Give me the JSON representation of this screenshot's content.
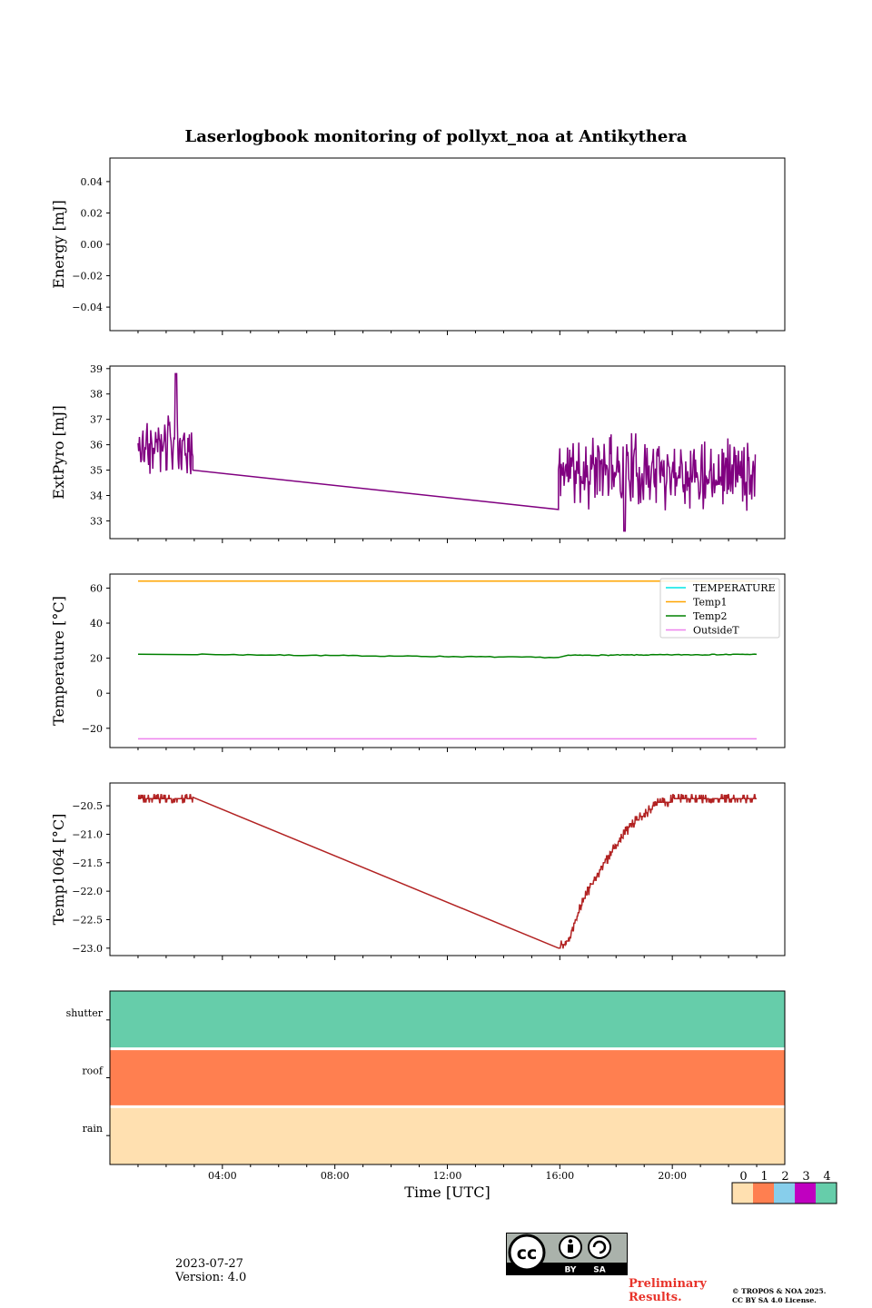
{
  "page": {
    "title": "Laserlogbook monitoring of pollyxt_noa at Antikythera",
    "date": "2023-07-27",
    "version": "Version: 4.0",
    "preliminary": "Preliminary Results.",
    "copyright_line1": "© TROPOS & NOA 2025.",
    "copyright_line2": "CC BY SA 4.0 License.",
    "cc_badge": {
      "cc": "cc",
      "by": "BY",
      "sa": "SA"
    }
  },
  "chart_data": [
    {
      "type": "line",
      "panel": "energy",
      "ylabel": "Energy [mJ]",
      "ylim": [
        -0.055,
        0.055
      ],
      "yticks": [
        0.04,
        0.02,
        0.0,
        -0.02,
        -0.04
      ],
      "ytick_labels": [
        "0.04",
        "0.02",
        "0.00",
        "−0.02",
        "−0.04"
      ],
      "series": []
    },
    {
      "type": "line",
      "panel": "extpyro",
      "ylabel": "ExtPyro [mJ]",
      "ylim": [
        32.3,
        39.1
      ],
      "yticks": [
        39,
        38,
        37,
        36,
        35,
        34,
        33
      ],
      "ytick_labels": [
        "39",
        "38",
        "37",
        "36",
        "35",
        "34",
        "33"
      ],
      "color": "#800080",
      "segments": [
        {
          "t_start": 1.0,
          "t_end": 2.95,
          "mean": 35.8,
          "amplitude": 1.4,
          "seed": 3
        },
        {
          "t_start": 15.95,
          "t_end": 22.95,
          "mean": 35.0,
          "amplitude": 1.7,
          "seed": 11
        }
      ],
      "bridge": [
        [
          2.95,
          35.0
        ],
        [
          15.95,
          33.45
        ]
      ],
      "peaks": [
        [
          2.35,
          38.8
        ],
        [
          18.3,
          32.6
        ]
      ]
    },
    {
      "type": "line",
      "panel": "temperature",
      "ylabel": "Temperature [°C]",
      "ylim": [
        -31,
        68
      ],
      "yticks": [
        60,
        40,
        20,
        0,
        -20
      ],
      "ytick_labels": [
        "60",
        "40",
        "20",
        "0",
        "−20"
      ],
      "series": [
        {
          "name": "TEMPERATURE",
          "color": "#00e5e5",
          "points": []
        },
        {
          "name": "Temp1",
          "color": "#ffa500",
          "points": [
            [
              1.0,
              64
            ],
            [
              23.0,
              64
            ]
          ]
        },
        {
          "name": "Temp2",
          "color": "#008000",
          "points": [
            [
              1.0,
              22.3
            ],
            [
              2.95,
              22.2
            ],
            [
              15.95,
              20.4
            ],
            [
              16.3,
              21.6
            ],
            [
              23.0,
              22.2
            ]
          ]
        },
        {
          "name": "OutsideT",
          "color": "#ee82ee",
          "points": [
            [
              1.0,
              -26
            ],
            [
              23.0,
              -26
            ]
          ]
        }
      ],
      "legend": "upper-right"
    },
    {
      "type": "line",
      "panel": "temp1064",
      "ylabel": "Temp1064 [°C]",
      "ylim": [
        -23.13,
        -20.1
      ],
      "yticks": [
        -20.5,
        -21.0,
        -21.5,
        -22.0,
        -22.5,
        -23.0
      ],
      "ytick_labels": [
        "−20.5",
        "−21.0",
        "−21.5",
        "−22.0",
        "−22.5",
        "−23.0"
      ],
      "color": "#b22222",
      "points": [
        [
          1.0,
          -20.35
        ],
        [
          2.95,
          -20.35
        ],
        [
          15.95,
          -23.0
        ],
        [
          16.3,
          -22.85
        ],
        [
          16.8,
          -22.2
        ],
        [
          17.5,
          -21.55
        ],
        [
          18.5,
          -20.85
        ],
        [
          19.5,
          -20.45
        ],
        [
          20.5,
          -20.35
        ],
        [
          23.0,
          -20.38
        ]
      ],
      "jitter": 0.07
    },
    {
      "type": "heatmap",
      "panel": "status",
      "rows": [
        "shutter",
        "roof",
        "rain"
      ],
      "values": [
        4,
        1,
        0
      ],
      "xlabel": "Time [UTC]",
      "xlim": [
        0,
        24
      ],
      "xticks": [
        4,
        8,
        12,
        16,
        20
      ],
      "xtick_labels": [
        "04:00",
        "08:00",
        "12:00",
        "16:00",
        "20:00"
      ],
      "colorbar": {
        "labels": [
          "0",
          "1",
          "2",
          "3",
          "4"
        ],
        "colors": [
          "#ffe0b0",
          "#ff7f50",
          "#87ceeb",
          "#c000c0",
          "#66cdaa"
        ]
      }
    }
  ]
}
